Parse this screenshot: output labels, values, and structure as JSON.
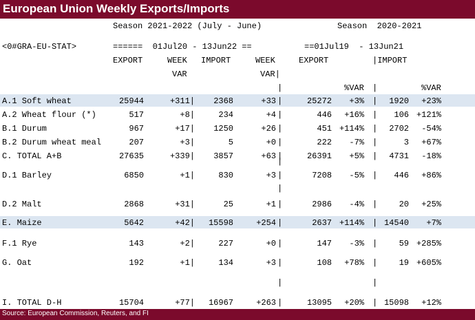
{
  "title": "European Union Weekly Exports/Imports",
  "header": {
    "season1": "Season 2021-2022 (July - June)",
    "season2": "Season  2020-2021",
    "ric": "<0#GRA-EU-STAT>",
    "range1": "======  01Jul20 - 13Jun22 ==",
    "range2": "==01Jul19  - 13Jun21",
    "col_export": "EXPORT",
    "col_week": "WEEK",
    "col_var": "VAR",
    "col_import": "IMPORT",
    "col_week2": "WEEK",
    "col_var2": "VAR|",
    "col_export2": "EXPORT",
    "col_import2": "|IMPORT",
    "pvar1": "%VAR",
    "pvar2": "%VAR"
  },
  "rows": [
    {
      "label": "A.1 Soft wheat",
      "exp": "25944",
      "wvar": "+311|",
      "imp": "2368",
      "wvar2": "+33",
      "exp2": "25272",
      "pvar": "+3%",
      "imp2": "1920",
      "pvar2": "+23%"
    },
    {
      "label": "A.2 Wheat flour (*)",
      "exp": "517",
      "wvar": "+8|",
      "imp": "234",
      "wvar2": "+4",
      "exp2": "446",
      "pvar": "+16%",
      "imp2": "106",
      "pvar2": "+121%"
    },
    {
      "label": "B.1 Durum",
      "exp": "967",
      "wvar": "+17|",
      "imp": "1250",
      "wvar2": "+26",
      "exp2": "451",
      "pvar": "+114%",
      "imp2": "2702",
      "pvar2": "-54%"
    },
    {
      "label": "B.2 Durum wheat meal",
      "exp": "207",
      "wvar": "+3|",
      "imp": "5",
      "wvar2": "+0",
      "exp2": "222",
      "pvar": "-7%",
      "imp2": "3",
      "pvar2": "+67%"
    },
    {
      "label": "C. TOTAL A+B",
      "exp": "27635",
      "wvar": "+339|",
      "imp": "3857",
      "wvar2": "+63",
      "exp2": "26391",
      "pvar": "+5%",
      "imp2": "4731",
      "pvar2": "-18%"
    },
    {
      "label": "D.1 Barley",
      "exp": "6850",
      "wvar": "+1|",
      "imp": "830",
      "wvar2": "+3",
      "exp2": "7208",
      "pvar": "-5%",
      "imp2": "446",
      "pvar2": "+86%"
    },
    {
      "label": "D.2 Malt",
      "exp": "2868",
      "wvar": "+31|",
      "imp": "25",
      "wvar2": "+1",
      "exp2": "2986",
      "pvar": "-4%",
      "imp2": "20",
      "pvar2": "+25%"
    },
    {
      "label": "E. Maize",
      "exp": "5642",
      "wvar": "+42|",
      "imp": "15598",
      "wvar2": "+254",
      "exp2": "2637",
      "pvar": "+114%",
      "imp2": "14540",
      "pvar2": "+7%"
    },
    {
      "label": "F.1 Rye",
      "exp": "143",
      "wvar": "+2|",
      "imp": "227",
      "wvar2": "+0",
      "exp2": "147",
      "pvar": "-3%",
      "imp2": "59",
      "pvar2": "+285%"
    },
    {
      "label": "G. Oat",
      "exp": "192",
      "wvar": "+1|",
      "imp": "134",
      "wvar2": "+3",
      "exp2": "108",
      "pvar": "+78%",
      "imp2": "19",
      "pvar2": "+605%"
    },
    {
      "label": "I. TOTAL D-H",
      "exp": "15704",
      "wvar": "+77|",
      "imp": "16967",
      "wvar2": "+263",
      "exp2": "13095",
      "pvar": "+20%",
      "imp2": "15098",
      "pvar2": "+12%"
    }
  ],
  "pipe": "|",
  "source": "Source: European Commission, Reuters, and FI"
}
